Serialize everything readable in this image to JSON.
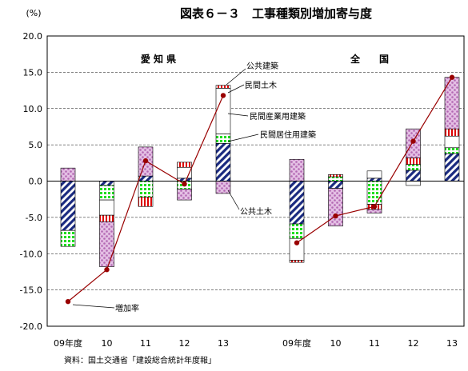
{
  "chart_data": {
    "type": "bar",
    "stacked": true,
    "title": "図表６－３　工事種類別増加寄与度",
    "ylabel": "(%)",
    "ylim": [
      -20,
      20
    ],
    "yticks": [
      20.0,
      15.0,
      10.0,
      5.0,
      0.0,
      -5.0,
      -10.0,
      -15.0,
      -20.0
    ],
    "ytick_labels": [
      "20.0",
      "15.0",
      "10.0",
      "5.0",
      "0.0",
      "-5.0",
      "-10.0",
      "-15.0",
      "-20.0"
    ],
    "grid": true,
    "legend": "none",
    "group_labels": [
      "愛 知 県",
      "全　　国"
    ],
    "groups": [
      {
        "label": "愛 知 県",
        "categories": [
          "09年度",
          "10",
          "11",
          "12",
          "13"
        ]
      },
      {
        "label": "全　　国",
        "categories": [
          "09年度",
          "10",
          "11",
          "12",
          "13"
        ]
      }
    ],
    "series": [
      {
        "name": "公共建築",
        "color": "#cc88cc",
        "pattern": "dots",
        "values": [
          1.8,
          -6.2,
          4.0,
          -1.5,
          -1.7,
          3.0,
          -5.2,
          -0.5,
          4.0,
          7.1
        ]
      },
      {
        "name": "民間土木",
        "color": "#dd0000",
        "pattern": "vstripes",
        "values": [
          0.0,
          -0.9,
          -1.3,
          0.7,
          0.4,
          -0.3,
          0.3,
          -0.7,
          0.9,
          1.0
        ]
      },
      {
        "name": "民間産業用建築",
        "color": "#ffffff",
        "pattern": "none",
        "values": [
          0.0,
          -2.1,
          0.0,
          1.5,
          6.3,
          -3.0,
          0.0,
          1.0,
          -0.6,
          1.6
        ]
      },
      {
        "name": "民間居住用建築",
        "color": "#11dd11",
        "pattern": "grid",
        "values": [
          -2.2,
          -2.0,
          -2.2,
          -1.1,
          1.3,
          -2.0,
          0.6,
          -3.2,
          0.8,
          0.8
        ]
      },
      {
        "name": "公共土木",
        "color": "#1a2a80",
        "pattern": "diag",
        "values": [
          -6.8,
          -0.6,
          0.7,
          0.4,
          5.2,
          -5.9,
          -1.0,
          0.4,
          1.5,
          3.8
        ]
      }
    ],
    "growth_rate": {
      "name": "増加率",
      "color": "#990000",
      "values": [
        -16.6,
        -12.2,
        2.8,
        -0.4,
        11.8,
        -8.5,
        -4.8,
        -3.5,
        5.5,
        14.3
      ]
    },
    "annotations": [
      "公共建築",
      "民間土木",
      "民間産業用建築",
      "民間居住用建築",
      "公共土木",
      "増加率"
    ],
    "source": "資料：国土交通省「建設総合統計年度報」"
  }
}
